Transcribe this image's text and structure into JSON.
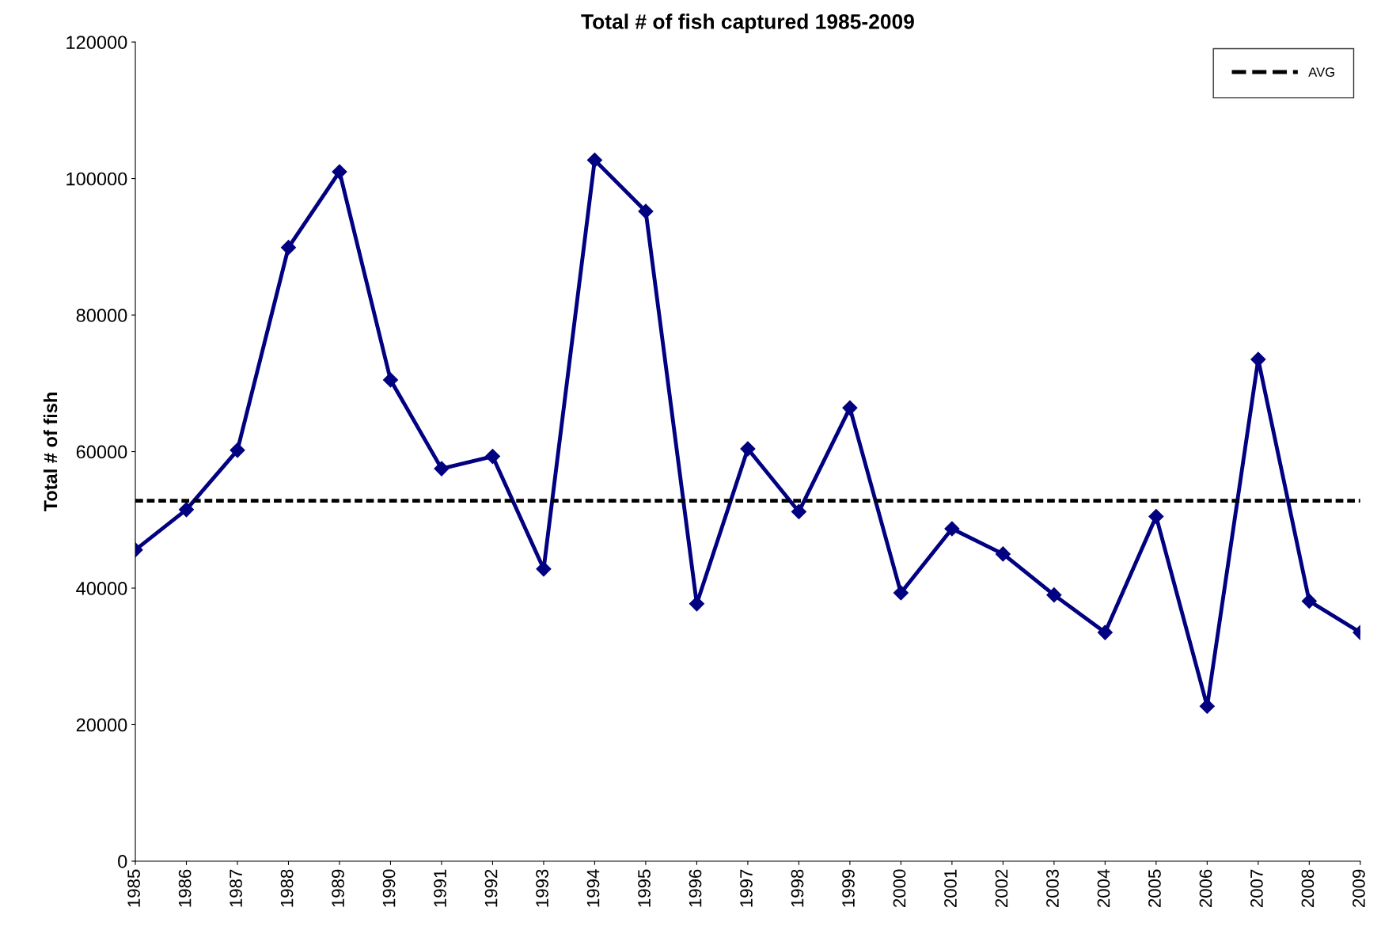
{
  "chart_data": {
    "type": "line",
    "title": "Total # of fish captured 1985-2009",
    "ylabel": "Total # of fish",
    "categories": [
      "1985",
      "1986",
      "1987",
      "1988",
      "1989",
      "1990",
      "1991",
      "1992",
      "1993",
      "1994",
      "1995",
      "1996",
      "1997",
      "1998",
      "1999",
      "2000",
      "2001",
      "2002",
      "2003",
      "2004",
      "2005",
      "2006",
      "2007",
      "2008",
      "2009"
    ],
    "series": [
      {
        "color": "#000080",
        "values": [
          45600,
          51500,
          60200,
          89900,
          101000,
          70500,
          57500,
          59300,
          42800,
          102700,
          95200,
          37700,
          60400,
          51200,
          66400,
          39300,
          48700,
          45000,
          39000,
          33500,
          50500,
          22700,
          73500,
          38100,
          33500
        ]
      }
    ],
    "ylim": [
      0,
      120000
    ],
    "yticks": [
      0,
      20000,
      40000,
      60000,
      80000,
      100000,
      120000
    ],
    "ref_lines": [
      {
        "axis": "y",
        "value": 52800,
        "label": "AVG",
        "color": "#000000",
        "line_style": "dashed"
      }
    ],
    "marker": "diamond",
    "line_style": "solid",
    "grid": false,
    "legend": "top right"
  }
}
